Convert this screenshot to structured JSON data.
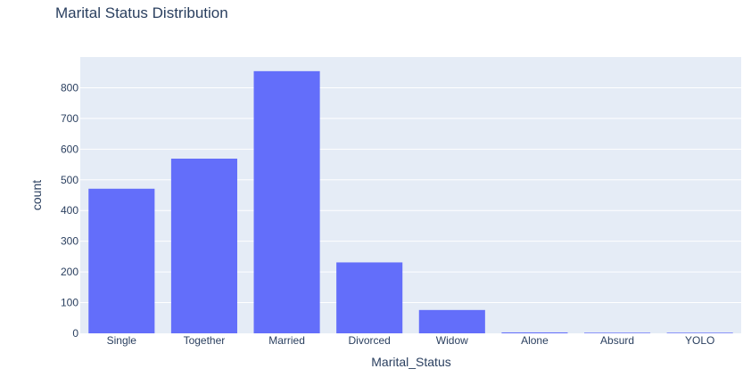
{
  "chart_data": {
    "type": "bar",
    "title": "Marital Status Distribution",
    "xlabel": "Marital_Status",
    "ylabel": "count",
    "categories": [
      "Single",
      "Together",
      "Married",
      "Divorced",
      "Widow",
      "Alone",
      "Absurd",
      "YOLO"
    ],
    "values": [
      471,
      569,
      854,
      231,
      76,
      3,
      2,
      2
    ],
    "ylim": [
      0,
      900
    ],
    "yticks": [
      0,
      100,
      200,
      300,
      400,
      500,
      600,
      700,
      800
    ],
    "grid": true,
    "bar_color": "#636efa",
    "plot_bg": "#e5ecf6"
  }
}
